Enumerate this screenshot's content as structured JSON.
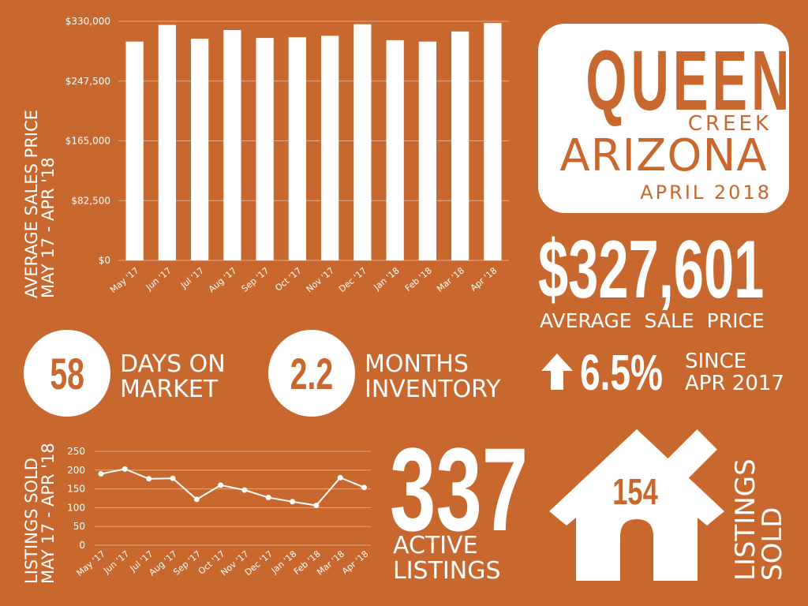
{
  "card": {
    "city": "QUEEN",
    "city2": "CREEK",
    "state": "ARIZONA",
    "period": "APRIL 2018"
  },
  "price": {
    "value": "$327,601",
    "label": "AVERAGE  SALE PRICE"
  },
  "stats": {
    "days": {
      "value": "58",
      "line1": "DAYS ON",
      "line2": "MARKET"
    },
    "months": {
      "value": "2.2",
      "line1": "MONTHS",
      "line2": "INVENTORY"
    },
    "growth": {
      "value": "6.5%",
      "line1": "SINCE",
      "line2": "APR 2017"
    }
  },
  "active": {
    "value": "337",
    "line1": "ACTIVE",
    "line2": "LISTINGS"
  },
  "sold": {
    "value": "154",
    "line1": "LISTINGS",
    "line2": "SOLD"
  },
  "bar_side_label": {
    "line1": "AVERAGE SALES PRICE",
    "line2": "MAY 17 - APR '18"
  },
  "line_side_label": {
    "line1": "LISTINGS SOLD",
    "line2": "MAY 17 - APR '18"
  },
  "colors": {
    "background": "#C8672E",
    "foreground": "#FFFFFF"
  },
  "chart_data": [
    {
      "type": "bar",
      "title": "",
      "ylabel": "AVERAGE SALES PRICE MAY 17 - APR '18",
      "categories": [
        "May '17",
        "Jun '17",
        "Jul '17",
        "Aug '17",
        "Sep '17",
        "Oct '17",
        "Nov '17",
        "Dec '17",
        "Jan '18",
        "Feb '18",
        "Mar '18",
        "Apr '18"
      ],
      "values": [
        302000,
        325000,
        306000,
        318000,
        307000,
        308000,
        310000,
        326000,
        304000,
        302000,
        316000,
        327601
      ],
      "ylim": [
        0,
        330000
      ],
      "yticks": [
        "$0",
        "$82,500",
        "$165,000",
        "$247,500",
        "$330,000"
      ],
      "ytick_values": [
        0,
        82500,
        165000,
        247500,
        330000
      ],
      "grid": true
    },
    {
      "type": "line",
      "title": "",
      "ylabel": "LISTINGS SOLD MAY 17 - APR '18",
      "categories": [
        "May '17",
        "Jun '17",
        "Jul '17",
        "Aug '17",
        "Sep '17",
        "Oct '17",
        "Nov '17",
        "Dec '17",
        "Jan '18",
        "Feb '18",
        "Mar '18",
        "Apr '18"
      ],
      "values": [
        190,
        203,
        177,
        178,
        122,
        160,
        147,
        127,
        116,
        106,
        180,
        154
      ],
      "ylim": [
        0,
        250
      ],
      "yticks": [
        "0",
        "50",
        "100",
        "150",
        "200",
        "250"
      ],
      "ytick_values": [
        0,
        50,
        100,
        150,
        200,
        250
      ],
      "grid": true
    }
  ]
}
